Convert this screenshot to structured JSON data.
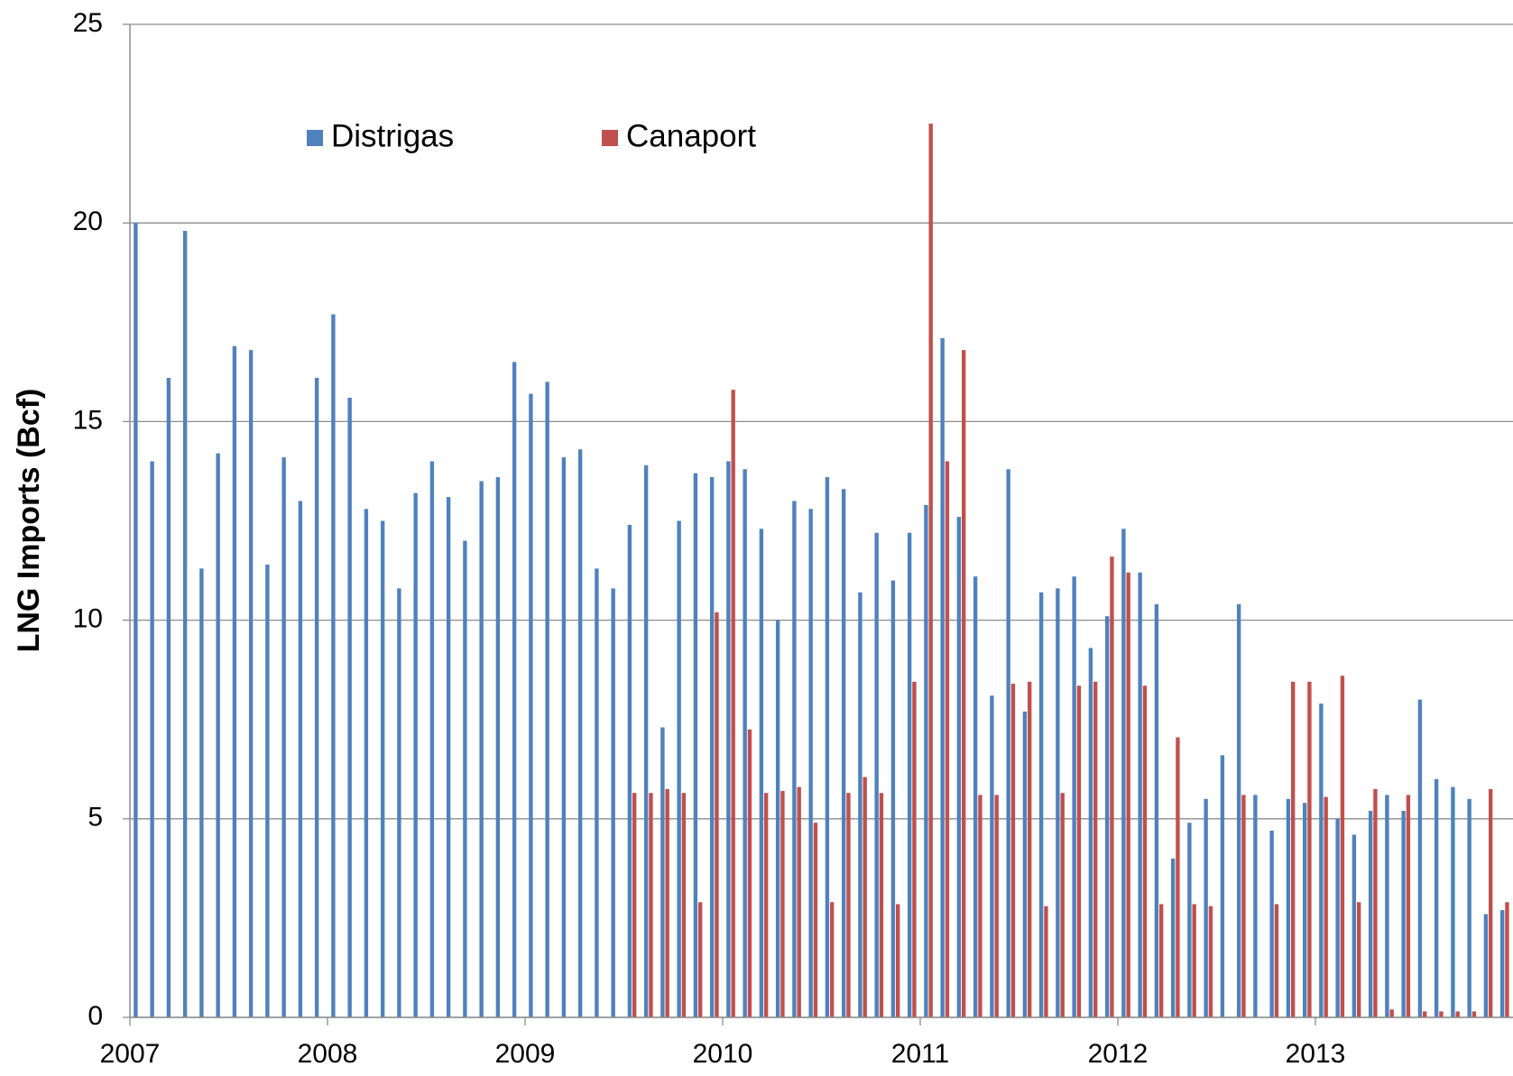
{
  "chart_data": {
    "type": "bar",
    "y_label": "LNG Imports (Bcf)",
    "categories": [
      "2007",
      null,
      null,
      null,
      null,
      null,
      null,
      null,
      null,
      null,
      null,
      null,
      "2008",
      null,
      null,
      null,
      null,
      null,
      null,
      null,
      null,
      null,
      null,
      null,
      "2009",
      null,
      null,
      null,
      null,
      null,
      null,
      null,
      null,
      null,
      null,
      null,
      "2010",
      null,
      null,
      null,
      null,
      null,
      null,
      null,
      null,
      null,
      null,
      null,
      "2011",
      null,
      null,
      null,
      null,
      null,
      null,
      null,
      null,
      null,
      null,
      null,
      "2012",
      null,
      null,
      null,
      null,
      null,
      null,
      null,
      null,
      null,
      null,
      null,
      "2013",
      null,
      null,
      null,
      null,
      null,
      null,
      null,
      null,
      null,
      null,
      null
    ],
    "series": [
      {
        "name": "Distrigas",
        "color": "#4f81bd",
        "values": [
          20,
          14.0,
          16.1,
          19.8,
          11.3,
          14.2,
          16.9,
          16.8,
          11.4,
          14.1,
          13.0,
          16.1,
          17.7,
          15.6,
          12.8,
          12.5,
          10.8,
          13.2,
          14.0,
          13.1,
          12.0,
          13.5,
          13.6,
          16.5,
          15.7,
          16.0,
          14.1,
          14.3,
          11.3,
          10.8,
          12.4,
          13.9,
          7.3,
          12.5,
          13.7,
          13.6,
          14.0,
          13.8,
          12.3,
          10.0,
          13.0,
          12.8,
          13.6,
          13.3,
          10.7,
          12.2,
          11.0,
          12.2,
          12.9,
          17.1,
          12.6,
          11.1,
          8.1,
          13.8,
          7.7,
          10.7,
          10.8,
          11.1,
          9.3,
          10.1,
          12.3,
          11.2,
          10.4,
          4.0,
          4.9,
          5.5,
          6.6,
          10.4,
          5.6,
          4.7,
          5.5,
          5.4,
          7.9,
          5.0,
          4.6,
          5.2,
          5.6,
          5.2,
          8.0,
          6.0,
          5.8,
          5.5,
          2.6,
          2.7
        ]
      },
      {
        "name": "Canaport",
        "color": "#c0504d",
        "values": [
          null,
          null,
          null,
          null,
          null,
          null,
          null,
          null,
          null,
          null,
          null,
          null,
          null,
          null,
          null,
          null,
          null,
          null,
          null,
          null,
          null,
          null,
          null,
          null,
          null,
          null,
          null,
          null,
          null,
          null,
          5.65,
          5.65,
          5.75,
          5.65,
          2.9,
          10.2,
          15.8,
          7.25,
          5.65,
          5.7,
          5.8,
          4.9,
          2.9,
          5.65,
          6.05,
          5.65,
          2.85,
          8.45,
          22.5,
          14.0,
          16.8,
          5.6,
          5.6,
          8.4,
          8.45,
          2.8,
          5.65,
          8.35,
          8.45,
          11.6,
          11.2,
          8.35,
          2.85,
          7.05,
          2.85,
          2.8,
          null,
          5.6,
          null,
          2.85,
          8.45,
          8.45,
          5.55,
          8.6,
          2.9,
          5.75,
          0.2,
          5.6,
          0.15,
          0.15,
          0.15,
          0.15,
          5.75,
          2.9
        ]
      }
    ],
    "ylim": [
      0,
      25
    ],
    "yticks": [
      0,
      5,
      10,
      15,
      20,
      25
    ],
    "grid": true
  }
}
